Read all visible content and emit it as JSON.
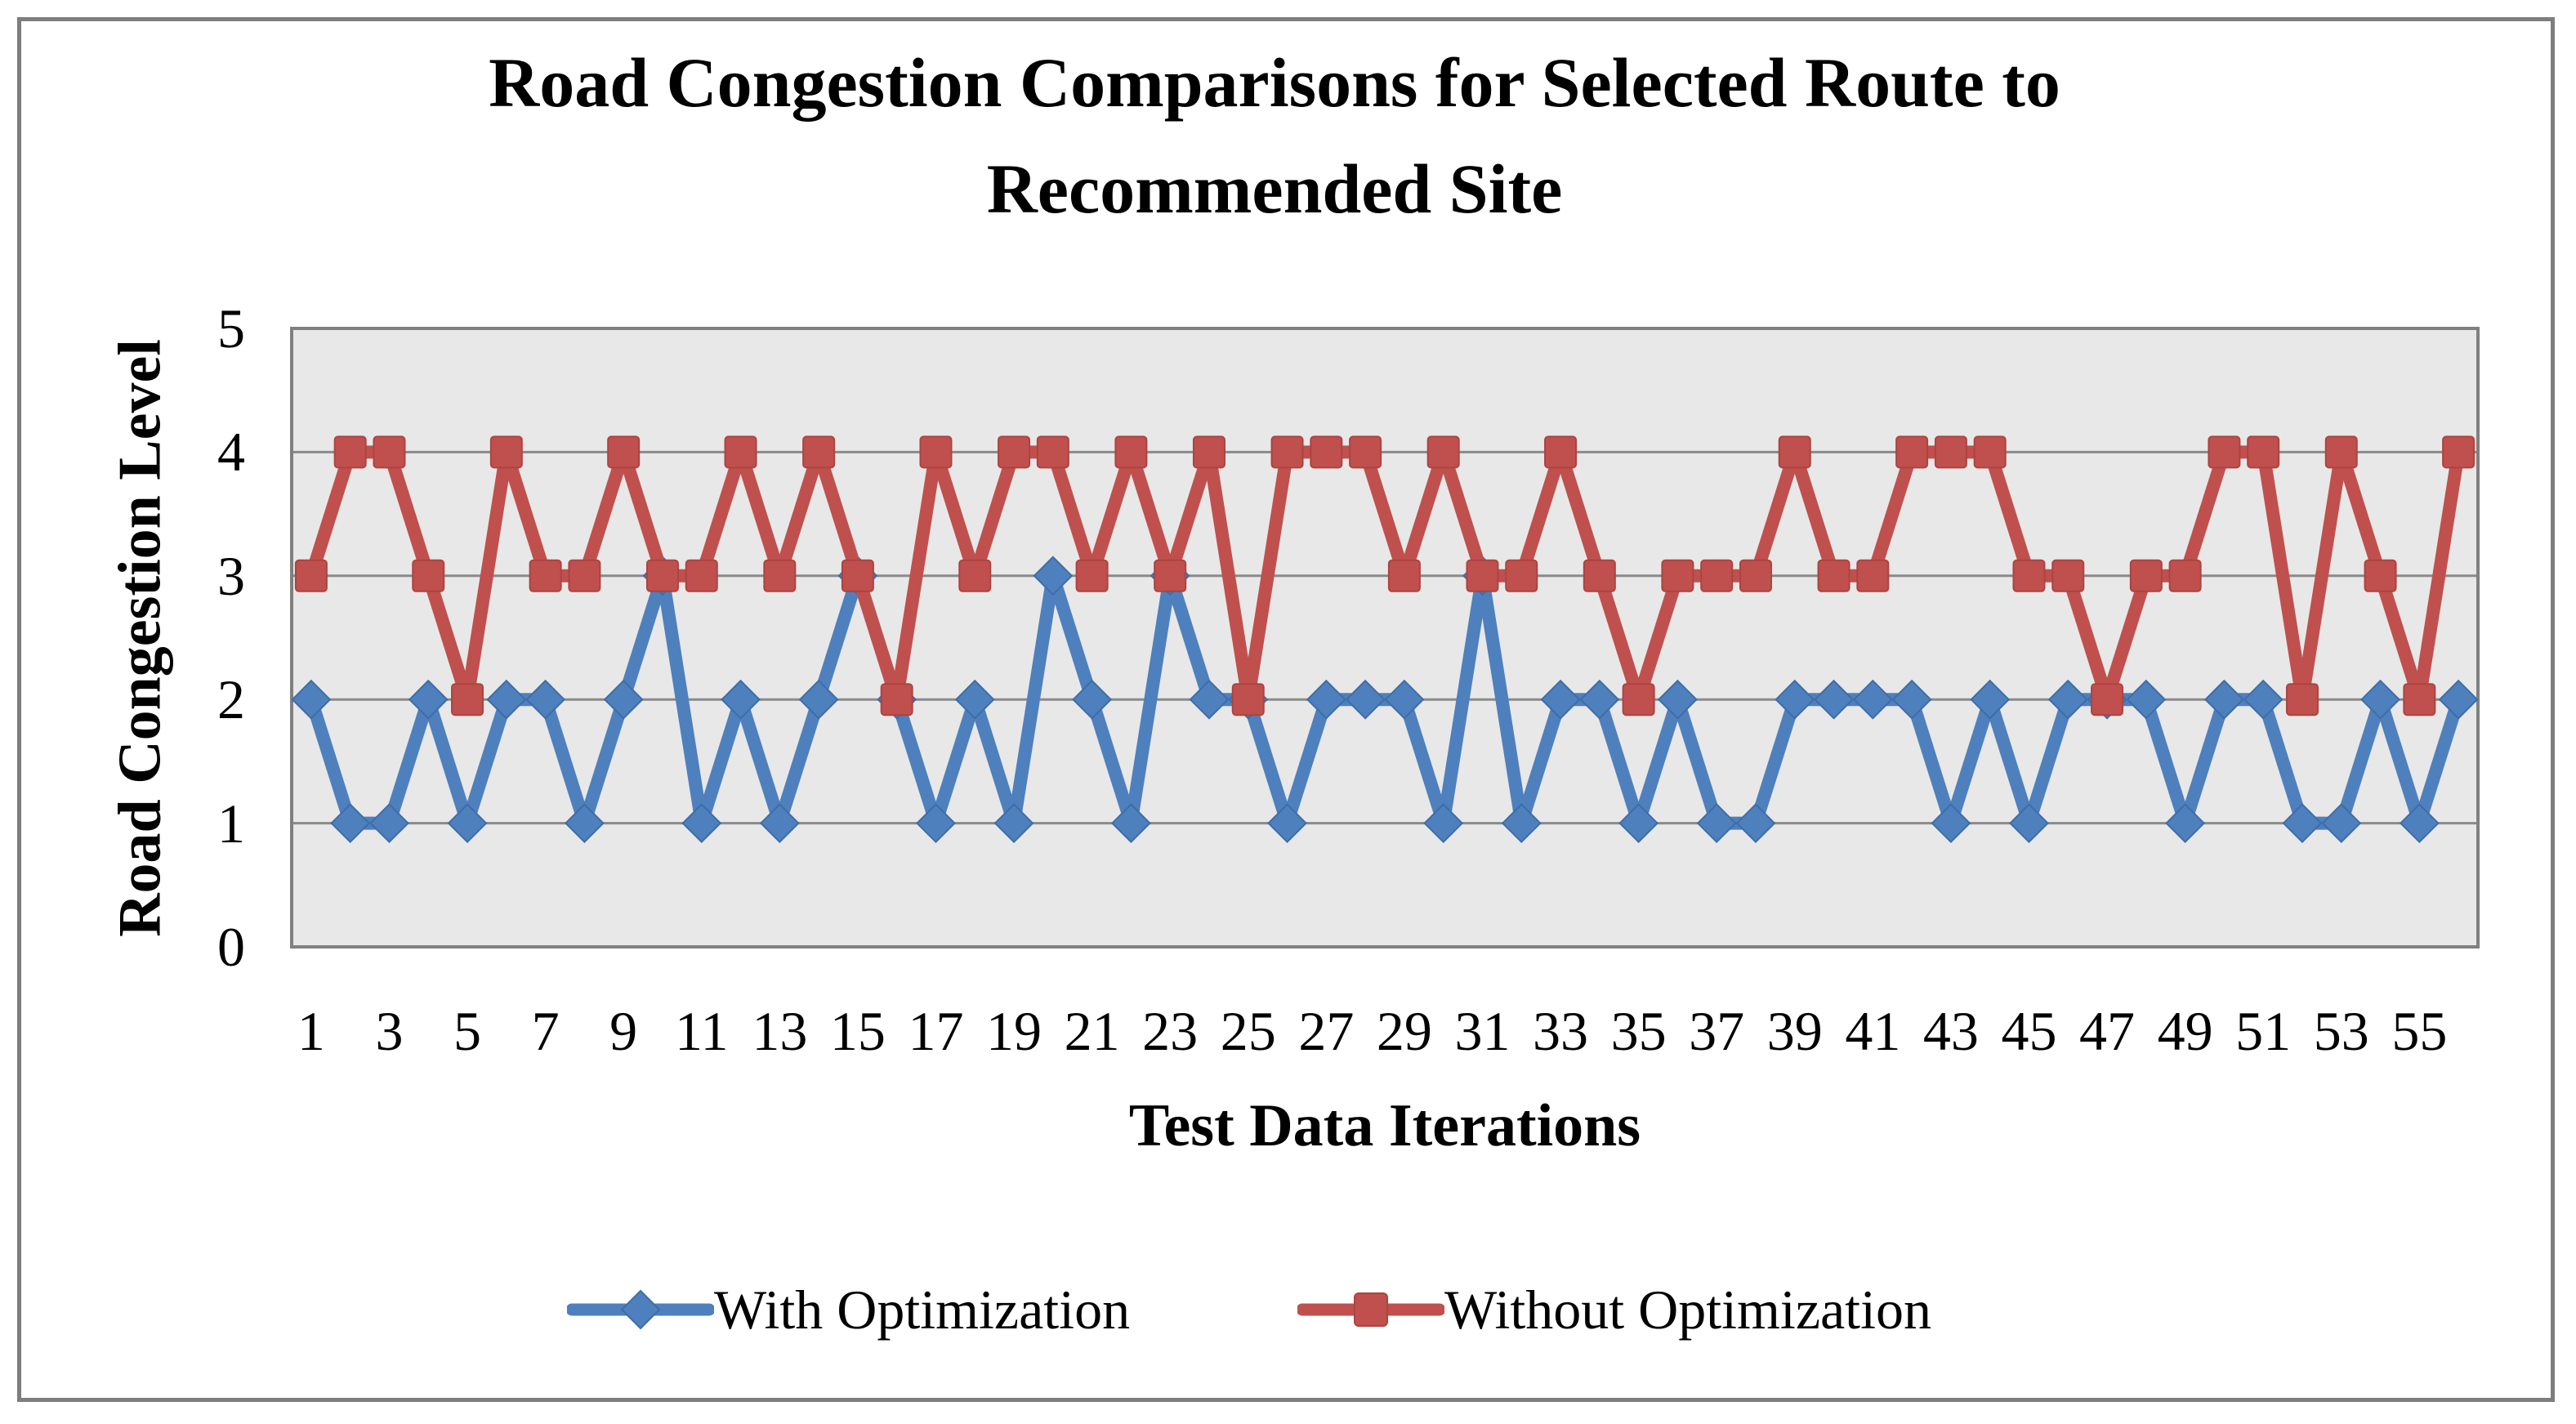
{
  "figure": {
    "title_line1": "Road Congestion Comparisons for Selected Route to",
    "title_line2": "Recommended Site"
  },
  "chart_data": {
    "type": "line",
    "title": "Road Congestion Comparisons for Selected Route to Recommended Site",
    "xlabel": "Test Data Iterations",
    "ylabel": "Road Congestion Level",
    "x": [
      1,
      2,
      3,
      4,
      5,
      6,
      7,
      8,
      9,
      10,
      11,
      12,
      13,
      14,
      15,
      16,
      17,
      18,
      19,
      20,
      21,
      22,
      23,
      24,
      25,
      26,
      27,
      28,
      29,
      30,
      31,
      32,
      33,
      34,
      35,
      36,
      37,
      38,
      39,
      40,
      41,
      42,
      43,
      44,
      45,
      46,
      47,
      48,
      49,
      50,
      51,
      52,
      53,
      54,
      55,
      56
    ],
    "series": [
      {
        "name": "With Optimization",
        "color": "#4E80BD",
        "edge_color": "#3D6DA8",
        "marker": "diamond",
        "values": [
          2,
          1,
          1,
          2,
          1,
          2,
          2,
          1,
          2,
          3,
          1,
          2,
          1,
          2,
          3,
          2,
          1,
          2,
          1,
          3,
          2,
          1,
          3,
          2,
          2,
          1,
          2,
          2,
          2,
          1,
          3,
          1,
          2,
          2,
          1,
          2,
          1,
          1,
          2,
          2,
          2,
          2,
          1,
          2,
          1,
          2,
          2,
          2,
          1,
          2,
          2,
          1,
          1,
          2,
          1,
          2
        ]
      },
      {
        "name": "Without Optimization",
        "color": "#C0504D",
        "edge_color": "#AD4340",
        "marker": "square",
        "values": [
          3,
          4,
          4,
          3,
          2,
          4,
          3,
          3,
          4,
          3,
          3,
          4,
          3,
          4,
          3,
          2,
          4,
          3,
          4,
          4,
          3,
          4,
          3,
          4,
          2,
          4,
          4,
          4,
          3,
          4,
          3,
          3,
          4,
          3,
          2,
          3,
          3,
          3,
          4,
          3,
          3,
          4,
          4,
          4,
          3,
          3,
          2,
          3,
          3,
          4,
          4,
          2,
          4,
          3,
          2,
          4
        ]
      }
    ],
    "ylim": [
      0,
      5
    ],
    "y_ticks": [
      0,
      1,
      2,
      3,
      4,
      5
    ],
    "x_tick_labels": [
      "1",
      "3",
      "5",
      "7",
      "9",
      "11",
      "13",
      "15",
      "17",
      "19",
      "21",
      "23",
      "25",
      "27",
      "29",
      "31",
      "33",
      "35",
      "37",
      "39",
      "41",
      "43",
      "45",
      "47",
      "49",
      "51",
      "53",
      "55"
    ],
    "grid": true,
    "legend_position": "bottom",
    "plot_bg": "#E8E8E8",
    "gridline_color": "#8A8A8A",
    "plot_border_color": "#808080"
  }
}
